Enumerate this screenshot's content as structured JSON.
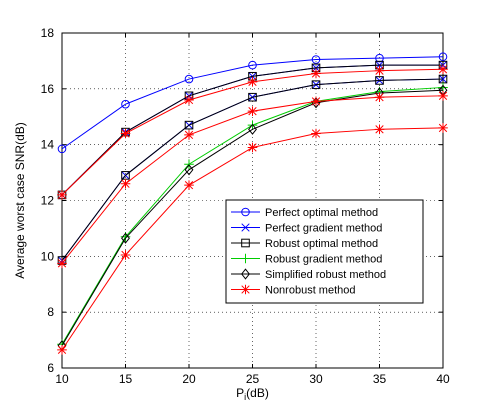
{
  "chart_data": {
    "type": "line",
    "title": "",
    "xlabel": "P",
    "xlabel_sub": "i",
    "xlabel_suffix": "(dB)",
    "ylabel": "Average worst case SNR(dB)",
    "xlim": [
      10,
      40
    ],
    "ylim": [
      6,
      18
    ],
    "x": [
      10,
      15,
      20,
      25,
      30,
      35,
      40
    ],
    "xticks": [
      10,
      15,
      20,
      25,
      30,
      35,
      40
    ],
    "yticks": [
      6,
      8,
      10,
      12,
      14,
      16,
      18
    ],
    "grid": true,
    "legend_position": "lower-right",
    "series": [
      {
        "groups": [
          [
            13.85,
            15.45,
            16.35,
            16.85,
            17.05,
            17.1,
            17.15
          ]
        ],
        "name": "Perfect optimal method",
        "color": "#0000ff",
        "marker": "circle"
      },
      {
        "groups": [
          [
            12.2,
            14.45,
            15.75,
            16.45,
            16.75,
            16.85,
            16.85
          ],
          [
            9.85,
            12.9,
            14.7,
            15.7,
            16.15,
            16.3,
            16.35
          ]
        ],
        "name": "Perfect gradient method",
        "color": "#0000ff",
        "marker": "x"
      },
      {
        "groups": [
          [
            12.2,
            14.45,
            15.75,
            16.45,
            16.75,
            16.85,
            16.85
          ],
          [
            9.85,
            12.9,
            14.7,
            15.7,
            16.15,
            16.3,
            16.35
          ]
        ],
        "name": "Robust optimal method",
        "color": "#000000",
        "marker": "square"
      },
      {
        "groups": [
          [
            6.85,
            10.7,
            13.3,
            14.7,
            15.55,
            15.9,
            16.05
          ]
        ],
        "name": "Robust gradient method",
        "color": "#00cc00",
        "marker": "plus"
      },
      {
        "groups": [
          [
            6.8,
            10.65,
            13.1,
            14.55,
            15.5,
            15.85,
            15.95
          ]
        ],
        "name": "Simplified robust method",
        "color": "#000000",
        "marker": "diamond"
      },
      {
        "groups": [
          [
            12.2,
            14.4,
            15.6,
            16.25,
            16.55,
            16.65,
            16.7
          ],
          [
            9.75,
            12.6,
            14.35,
            15.2,
            15.55,
            15.7,
            15.75
          ],
          [
            6.65,
            10.05,
            12.55,
            13.9,
            14.4,
            14.55,
            14.6
          ]
        ],
        "name": "Nonrobust method",
        "color": "#ff0000",
        "marker": "star"
      }
    ]
  }
}
